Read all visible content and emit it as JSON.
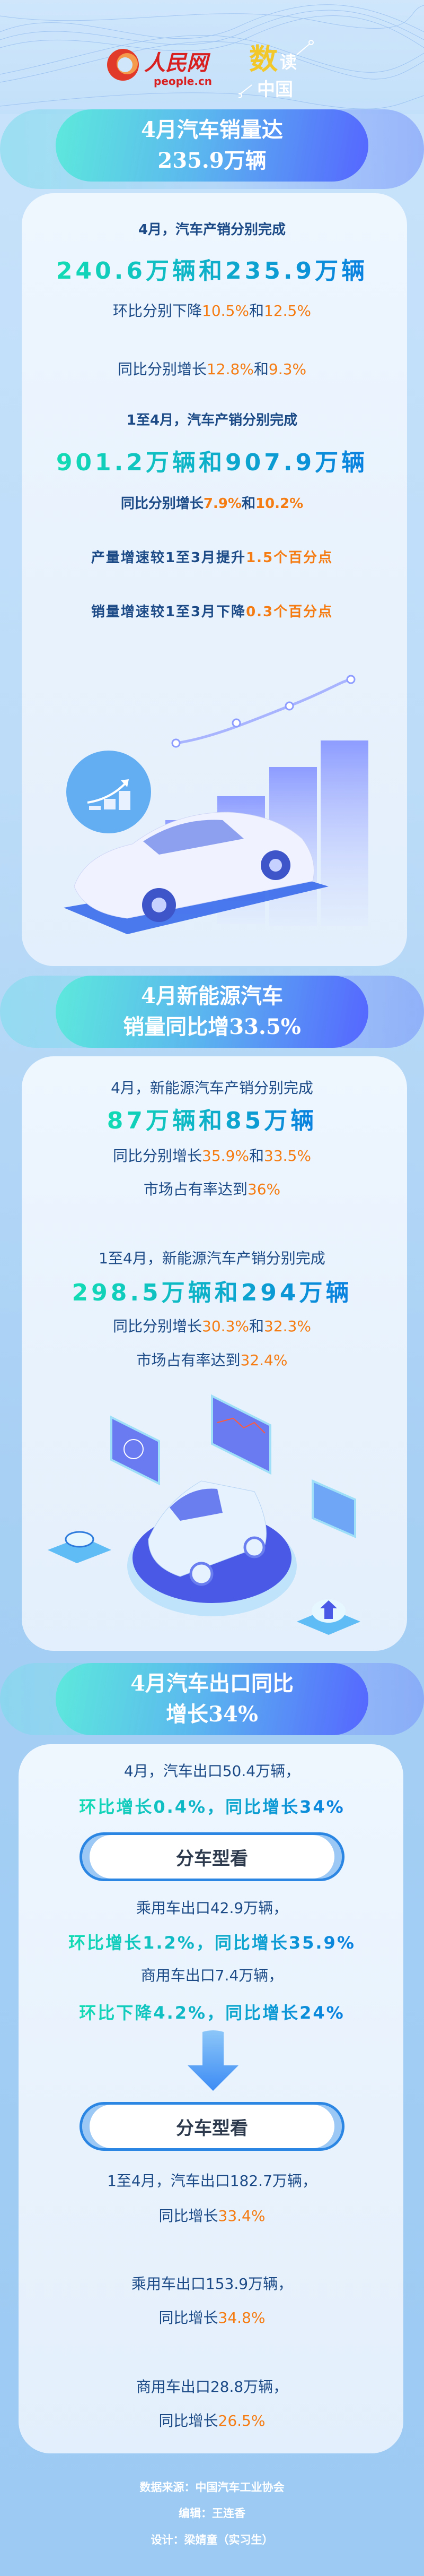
{
  "header": {
    "logo_people_cn": "人民网",
    "logo_people_domain": "people.cn",
    "logo_shudu": "数读中国"
  },
  "colors": {
    "body_text": "#1b4a86",
    "highlight": "#f57c12",
    "gradient_start": "#12dcb4",
    "gradient_end": "#0a80e0",
    "pill_start": "#5de9dc",
    "pill_end": "#5566ff"
  },
  "section1": {
    "title": [
      "4月汽车销量达",
      "235.9万辆"
    ],
    "line1": "4月，汽车产销分别完成",
    "big1": "240.6万辆和235.9万辆",
    "mom": {
      "prefix": "环比分别下降",
      "v1": "10.5%",
      "and": "和",
      "v2": "12.5%"
    },
    "yoy": {
      "prefix": "同比分别增长",
      "v1": "12.8%",
      "and": "和",
      "v2": "9.3%"
    },
    "line2": "1至4月，汽车产销分别完成",
    "big2": "901.2万辆和907.9万辆",
    "yoy2": {
      "prefix": "同比分别增长",
      "v1": "7.9%",
      "and": "和",
      "v2": "10.2%"
    },
    "prod": {
      "prefix": "产量增速较1至3月提升",
      "v": "1.5个百分点"
    },
    "sales": {
      "prefix": "销量增速较1至3月下降",
      "v": "0.3个百分点"
    },
    "illustration": "car-with-bar-chart"
  },
  "section2": {
    "title": [
      "4月新能源汽车",
      "销量同比增33.5%"
    ],
    "line1": "4月，新能源汽车产销分别完成",
    "big1": "87万辆和85万辆",
    "yoy1": {
      "prefix": "同比分别增长",
      "v1": "35.9%",
      "and": "和",
      "v2": "33.5%"
    },
    "share1": {
      "prefix": "市场占有率达到",
      "v": "36%"
    },
    "line2": "1至4月，新能源汽车产销分别完成",
    "big2": "298.5万辆和294万辆",
    "yoy2": {
      "prefix": "同比分别增长",
      "v1": "30.3%",
      "and": "和",
      "v2": "32.3%"
    },
    "share2": {
      "prefix": "市场占有率达到",
      "v": "32.4%"
    },
    "illustration": "car-on-platform-with-screens"
  },
  "section3": {
    "title": [
      "4月汽车出口同比",
      "增长34%"
    ],
    "line1": "4月，汽车出口50.4万辆，",
    "green1": "环比增长0.4%，同比增长34%",
    "by_type_label": "分车型看",
    "passenger1": "乘用车出口42.9万辆，",
    "green2": "环比增长1.2%，同比增长35.9%",
    "commercial1": "商用车出口7.4万辆，",
    "green3": "环比下降4.2%，同比增长24%",
    "by_type_label2": "分车型看",
    "ytd": "1至4月，汽车出口182.7万辆，",
    "ytd_yoy": {
      "prefix": "同比增长",
      "v": "33.4%"
    },
    "passenger2": "乘用车出口153.9万辆，",
    "passenger2_yoy": {
      "prefix": "同比增长",
      "v": "34.8%"
    },
    "commercial2": "商用车出口28.8万辆，",
    "commercial2_yoy": {
      "prefix": "同比增长",
      "v": "26.5%"
    }
  },
  "footer": {
    "source": "数据来源：中国汽车工业协会",
    "editor": "编辑：王连香",
    "designer": "设计：梁婧童（实习生）"
  }
}
